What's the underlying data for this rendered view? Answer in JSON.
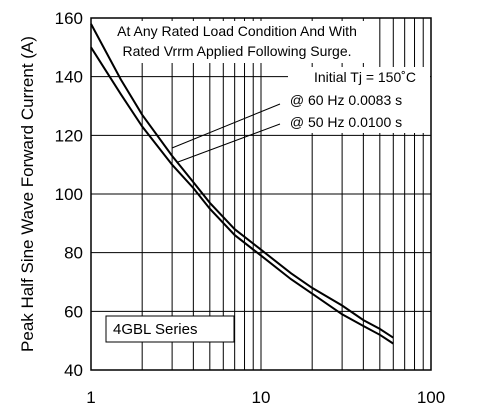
{
  "chart_data": {
    "type": "line",
    "ylabel": "Peak Half Sine Wave Forward Current (A)",
    "xlabel": "",
    "xscale": "log",
    "xlim": [
      1,
      100
    ],
    "ylim": [
      40,
      160
    ],
    "grid": true,
    "x_tick_labels": [
      "1",
      "10",
      "100"
    ],
    "y_tick_labels": [
      "40",
      "60",
      "80",
      "100",
      "120",
      "140",
      "160"
    ],
    "series": [
      {
        "x": [
          1,
          1.5,
          2,
          3,
          4,
          5,
          7,
          10,
          15,
          20,
          30,
          40,
          50,
          60
        ],
        "values": [
          158,
          139,
          127,
          113,
          104,
          97,
          88,
          81,
          73,
          68,
          62,
          57,
          54,
          51
        ]
      },
      {
        "x": [
          1,
          1.5,
          2,
          3,
          4,
          5,
          7,
          10,
          15,
          20,
          30,
          40,
          50,
          60
        ],
        "values": [
          150,
          134,
          123,
          110,
          102,
          95,
          86,
          79,
          71,
          66,
          59,
          55,
          52,
          49
        ]
      }
    ],
    "annotations": [
      "At Any Rated Load Condition And With",
      "Rated Vrrm Applied Following Surge.",
      "Initial Tj = 150˚C",
      "@ 60 Hz 0.0083 s",
      "@ 50 Hz 0.0100 s",
      "4GBL  Series"
    ]
  }
}
